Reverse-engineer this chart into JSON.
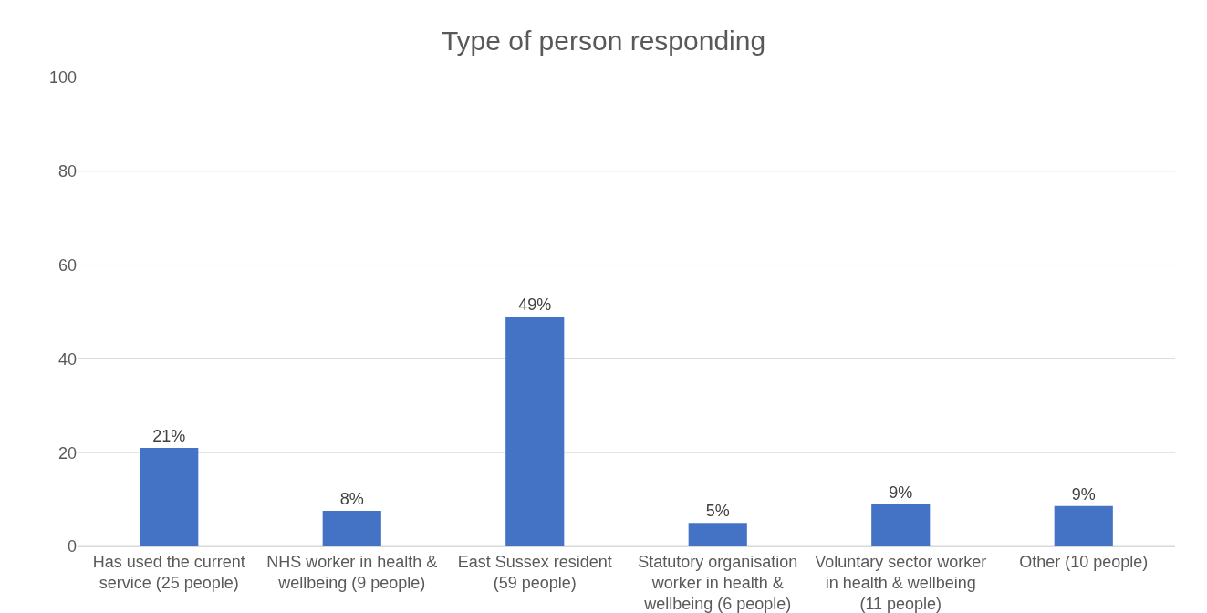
{
  "chart_data": {
    "type": "bar",
    "title": "Type of person responding",
    "categories": [
      "Has used the current service (25 people)",
      "NHS worker in health & wellbeing (9 people)",
      "East Sussex resident (59 people)",
      "Statutory organisation worker in health & wellbeing (6 people)",
      "Voluntary sector worker in health & wellbeing (11 people)",
      "Other (10 people)"
    ],
    "values": [
      21,
      7.6,
      49,
      5,
      9,
      8.6
    ],
    "value_labels": [
      "21%",
      "8%",
      "49%",
      "5%",
      "9%",
      "9%"
    ],
    "color": "#4472c4",
    "ylim": [
      0,
      100
    ],
    "yticks": [
      0,
      20,
      40,
      60,
      80,
      100
    ],
    "grid": "y"
  }
}
